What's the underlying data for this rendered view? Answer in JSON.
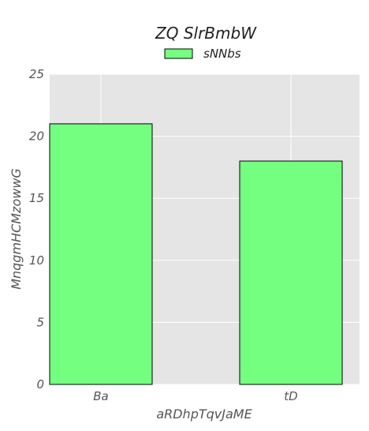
{
  "chart_data": {
    "type": "bar",
    "title": "ZQ SlrBmbW",
    "xlabel": "aRDhpTqvJaME",
    "ylabel": "MnqgmHCMzowwG",
    "categories": [
      "Ba",
      "tD"
    ],
    "series": [
      {
        "name": "sNNbs",
        "values": [
          21,
          18
        ]
      }
    ],
    "ylim": [
      0,
      25
    ],
    "yticks": [
      0,
      5,
      10,
      15,
      20,
      25
    ],
    "grid": true,
    "legend_position": "top-center",
    "colors": {
      "bar": "#75ff80",
      "bar_edge": "#000000",
      "plot_background": "#e5e5e5",
      "grid": "#ffffff"
    }
  }
}
